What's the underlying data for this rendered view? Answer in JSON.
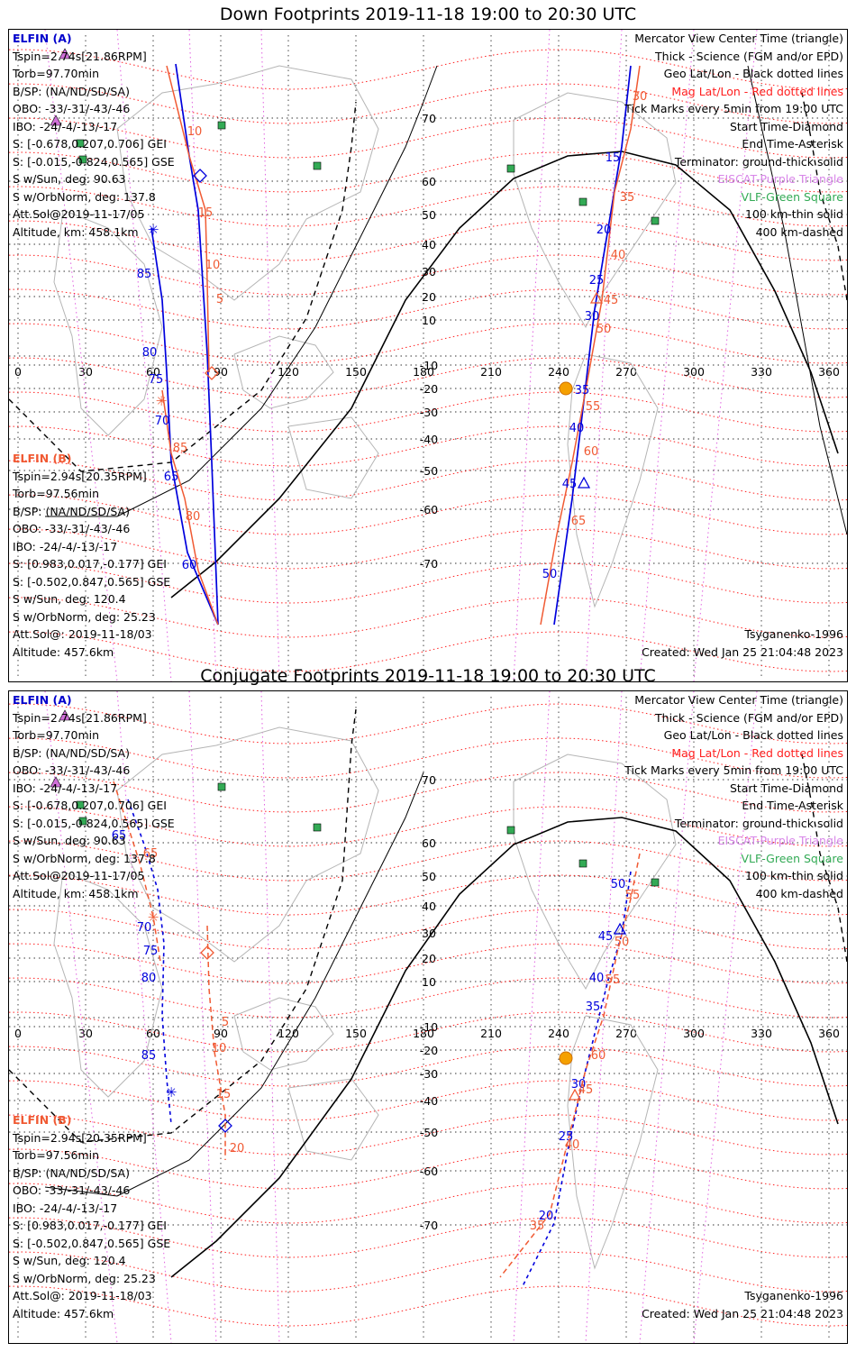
{
  "panels": [
    {
      "title": "Down Footprints 2019-11-18 19:00 to 20:30 UTC",
      "sc_a": {
        "header": "ELFIN (A)",
        "lines": [
          "Tspin=2.74s[21.86RPM]",
          "Torb=97.70min",
          "B/SP: (NA/ND/SD/SA)",
          "OBO: -33/-31/-43/-46",
          "IBO: -24/-4/-13/-17",
          "S: [-0.678,0.207,0.706] GEI",
          "S: [-0.015,-0.824,0.565] GSE",
          "S w/Sun, deg: 90.63",
          "S w/OrbNorm, deg: 137.8",
          "Att.Sol@2019-11-17/05",
          "Altitude, km: 458.1km"
        ]
      },
      "sc_b": {
        "header": "ELFIN (B)",
        "lines": [
          "Tspin=2.94s[20.35RPM]",
          "Torb=97.56min",
          "B/SP: (NA/ND/SD/SA)",
          "OBO: -33/-31/-43/-46",
          "IBO: -24/-4/-13/-17",
          "S: [0.983,0.017,-0.177] GEI",
          "S: [-0.502,0.847,0.565] GSE",
          "S w/Sun, deg: 120.4",
          "S w/OrbNorm, deg: 25.23",
          "Att.Sol@: 2019-11-18/03",
          "Altitude: 457.6km"
        ]
      },
      "legend": [
        {
          "text": "Mercator View Center Time (triangle)",
          "color": "#000000"
        },
        {
          "text": "Thick - Science (FGM and/or EPD)",
          "color": "#000000"
        },
        {
          "text": "Geo Lat/Lon - Black dotted lines",
          "color": "#000000"
        },
        {
          "text": "Mag Lat/Lon - Red dotted lines",
          "color": "#ff2020"
        },
        {
          "text": "Tick Marks every 5min from 19:00 UTC",
          "color": "#000000"
        },
        {
          "text": "Start Time-Diamond",
          "color": "#000000"
        },
        {
          "text": "End Time-Asterisk",
          "color": "#000000"
        },
        {
          "text": "Terminator: ground-thick solid",
          "color": "#000000"
        },
        {
          "text": "EISCAT-Purple Triangle",
          "color": "#d886e8"
        },
        {
          "text": "VLF-Green Square",
          "color": "#33aa55"
        },
        {
          "text": "100 km-thin solid",
          "color": "#000000"
        },
        {
          "text": "400 km-dashed",
          "color": "#000000"
        }
      ],
      "footer_left": "Tsyganenko-1996",
      "footer_right": "Created: Wed Jan 25 21:04:48 2023",
      "a_ticks_west": [
        "85",
        "80",
        "75",
        "70",
        "65",
        "60"
      ],
      "b_ticks_west": [
        "10",
        "15",
        "10",
        "5",
        "85",
        "80"
      ],
      "a_ticks_east": [
        "15",
        "20",
        "25",
        "30",
        "35",
        "40",
        "45",
        "50"
      ],
      "b_ticks_east": [
        "30",
        "35",
        "40",
        "45",
        "50",
        "55",
        "60",
        "65"
      ]
    },
    {
      "title": "Conjugate Footprints 2019-11-18 19:00 to 20:30 UTC",
      "sc_a": {
        "header": "ELFIN (A)",
        "lines": [
          "Tspin=2.74s[21.86RPM]",
          "Torb=97.70min",
          "B/SP: (NA/ND/SD/SA)",
          "OBO: -33/-31/-43/-46",
          "IBO: -24/-4/-13/-17",
          "S: [-0.678,0.207,0.706] GEI",
          "S: [-0.015,-0.824,0.565] GSE",
          "S w/Sun, deg: 90.63",
          "S w/OrbNorm, deg: 137.8",
          "Att.Sol@2019-11-17/05",
          "Altitude, km: 458.1km"
        ]
      },
      "sc_b": {
        "header": "ELFIN (B)",
        "lines": [
          "Tspin=2.94s[20.35RPM]",
          "Torb=97.56min",
          "B/SP: (NA/ND/SD/SA)",
          "OBO: -33/-31/-43/-46",
          "IBO: -24/-4/-13/-17",
          "S: [0.983,0.017,-0.177] GEI",
          "S: [-0.502,0.847,0.565] GSE",
          "S w/Sun, deg: 120.4",
          "S w/OrbNorm, deg: 25.23",
          "Att.Sol@: 2019-11-18/03",
          "Altitude: 457.6km"
        ]
      },
      "legend": [
        {
          "text": "Mercator View Center Time (triangle)",
          "color": "#000000"
        },
        {
          "text": "Thick - Science (FGM and/or EPD)",
          "color": "#000000"
        },
        {
          "text": "Geo Lat/Lon - Black dotted lines",
          "color": "#000000"
        },
        {
          "text": "Mag Lat/Lon - Red dotted lines",
          "color": "#ff2020"
        },
        {
          "text": "Tick Marks every 5min from 19:00 UTC",
          "color": "#000000"
        },
        {
          "text": "Start Time-Diamond",
          "color": "#000000"
        },
        {
          "text": "End Time-Asterisk",
          "color": "#000000"
        },
        {
          "text": "Terminator: ground-thick solid",
          "color": "#000000"
        },
        {
          "text": "EISCAT-Purple Triangle",
          "color": "#d886e8"
        },
        {
          "text": "VLF-Green Square",
          "color": "#33aa55"
        },
        {
          "text": "100 km-thin solid",
          "color": "#000000"
        },
        {
          "text": "400 km-dashed",
          "color": "#000000"
        }
      ],
      "footer_left": "Tsyganenko-1996",
      "footer_right": "Created: Wed Jan 25 21:04:48 2023",
      "a_ticks_west": [
        "65",
        "70",
        "75",
        "80",
        "85"
      ],
      "b_ticks_west": [
        "65",
        "5",
        "10",
        "15",
        "20"
      ],
      "a_ticks_east": [
        "50",
        "45",
        "40",
        "35",
        "30",
        "25",
        "20"
      ],
      "b_ticks_east": [
        "55",
        "50",
        "55",
        "60",
        "45",
        "40",
        "35"
      ]
    }
  ],
  "lon_labels": [
    "0",
    "30",
    "60",
    "90",
    "120",
    "150",
    "180",
    "210",
    "240",
    "270",
    "300",
    "330",
    "360"
  ],
  "lat_labels": [
    "70",
    "60",
    "50",
    "40",
    "30",
    "20",
    "10",
    "-10",
    "-20",
    "-30",
    "-40",
    "-50",
    "-60",
    "-70"
  ]
}
